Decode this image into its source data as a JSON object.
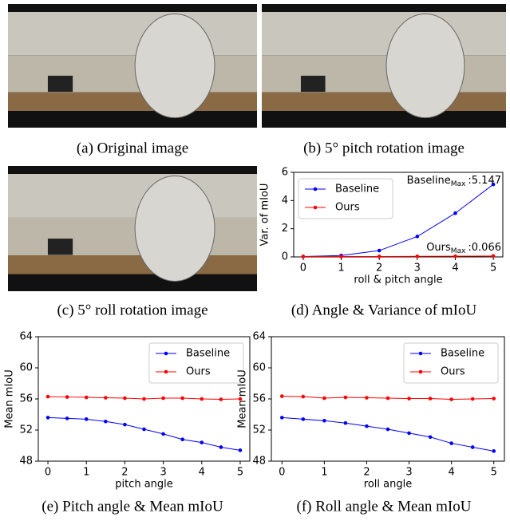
{
  "images": [
    {
      "caption": "(a) Original image"
    },
    {
      "caption": "(b) 5° pitch rotation image"
    },
    {
      "caption": "(c) 5° roll rotation image"
    }
  ],
  "chart_data": [
    {
      "type": "line",
      "caption": "(d) Angle & Variance of mIoU",
      "xlabel": "roll & pitch angle",
      "ylabel": "Var. of mIoU",
      "x": [
        0,
        1,
        2,
        3,
        4,
        5
      ],
      "xlim": [
        -0.25,
        5.25
      ],
      "xticks": [
        0,
        1,
        2,
        3,
        4,
        5
      ],
      "ylim": [
        0,
        6
      ],
      "yticks": [
        0,
        2,
        4,
        6
      ],
      "legend": "upper left",
      "series": [
        {
          "name": "Baseline",
          "color": "#0000ff",
          "values": [
            0.03,
            0.1,
            0.45,
            1.45,
            3.1,
            5.147
          ]
        },
        {
          "name": "Ours",
          "color": "#ff0000",
          "values": [
            0.03,
            0.03,
            0.03,
            0.04,
            0.05,
            0.066
          ]
        }
      ],
      "annotations": [
        {
          "text": "Baseline",
          "sub": "Max",
          "value": ":5.147"
        },
        {
          "text": "Ours",
          "sub": "Max",
          "value": ":0.066"
        }
      ]
    },
    {
      "type": "line",
      "caption": "(e) Pitch angle & Mean mIoU",
      "xlabel": "pitch angle",
      "ylabel": "Mean mIoU",
      "x": [
        0,
        0.5,
        1,
        1.5,
        2,
        2.5,
        3,
        3.5,
        4,
        4.5,
        5
      ],
      "xlim": [
        -0.25,
        5.25
      ],
      "xticks": [
        0,
        1,
        2,
        3,
        4,
        5
      ],
      "ylim": [
        48,
        64
      ],
      "yticks": [
        48,
        52,
        56,
        60,
        64
      ],
      "legend": "upper right",
      "series": [
        {
          "name": "Baseline",
          "color": "#0000ff",
          "values": [
            53.6,
            53.5,
            53.4,
            53.1,
            52.7,
            52.1,
            51.5,
            50.8,
            50.4,
            49.8,
            49.4
          ]
        },
        {
          "name": "Ours",
          "color": "#ff0000",
          "values": [
            56.3,
            56.25,
            56.2,
            56.15,
            56.1,
            56.0,
            56.1,
            56.1,
            56.0,
            55.95,
            56.0
          ]
        }
      ]
    },
    {
      "type": "line",
      "caption": "(f) Roll angle & Mean mIoU",
      "xlabel": "roll angle",
      "ylabel": "Mean mIoU",
      "x": [
        0,
        0.5,
        1,
        1.5,
        2,
        2.5,
        3,
        3.5,
        4,
        4.5,
        5
      ],
      "xlim": [
        -0.25,
        5.25
      ],
      "xticks": [
        0,
        1,
        2,
        3,
        4,
        5
      ],
      "ylim": [
        48,
        64
      ],
      "yticks": [
        48,
        52,
        56,
        60,
        64
      ],
      "legend": "upper right",
      "series": [
        {
          "name": "Baseline",
          "color": "#0000ff",
          "values": [
            53.6,
            53.4,
            53.2,
            52.9,
            52.5,
            52.1,
            51.6,
            51.1,
            50.3,
            49.8,
            49.3
          ]
        },
        {
          "name": "Ours",
          "color": "#ff0000",
          "values": [
            56.35,
            56.3,
            56.1,
            56.2,
            56.15,
            56.1,
            56.05,
            56.05,
            55.95,
            56.0,
            56.05
          ]
        }
      ]
    }
  ]
}
